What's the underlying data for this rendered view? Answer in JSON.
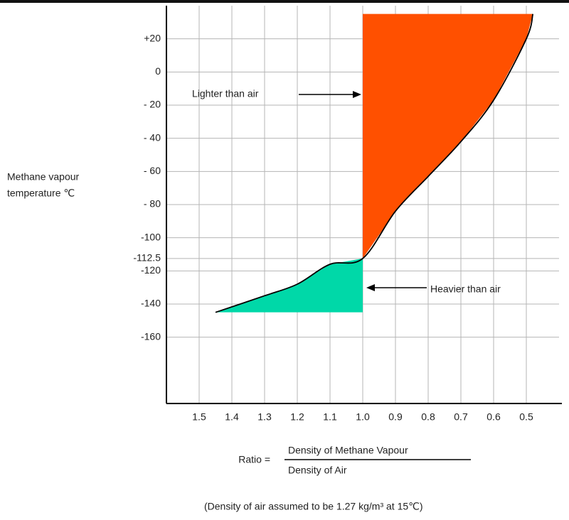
{
  "chart_data": {
    "type": "line",
    "ylabel": [
      "Methane vapour",
      "temperature ℃"
    ],
    "x": [
      1.45,
      1.3,
      1.2,
      1.1,
      1.0,
      0.9,
      0.8,
      0.7,
      0.6,
      0.5,
      0.48
    ],
    "series": [
      {
        "values": [
          -145,
          -135,
          -128,
          -116,
          -112.5,
          -84,
          -63,
          -42,
          -17,
          20,
          35
        ],
        "color": "#000000"
      }
    ],
    "area_colors": {
      "lighter": "#ff5000",
      "heavier": "#00d8a8"
    },
    "xlim": [
      1.6,
      0.4
    ],
    "xticks": [
      {
        "value": 1.5,
        "label": "1.5"
      },
      {
        "value": 1.4,
        "label": "1.4"
      },
      {
        "value": 1.3,
        "label": "1.3"
      },
      {
        "value": 1.2,
        "label": "1.2"
      },
      {
        "value": 1.1,
        "label": "1.1"
      },
      {
        "value": 1.0,
        "label": "1.0"
      },
      {
        "value": 0.9,
        "label": "0.9"
      },
      {
        "value": 0.8,
        "label": "0.8"
      },
      {
        "value": 0.7,
        "label": "0.7"
      },
      {
        "value": 0.6,
        "label": "0.6"
      },
      {
        "value": 0.5,
        "label": "0.5"
      }
    ],
    "ylim": [
      -200,
      40
    ],
    "yticks": [
      {
        "value": 20,
        "label": "+20"
      },
      0,
      {
        "value": -20,
        "label": "- 20"
      },
      {
        "value": -40,
        "label": "- 40"
      },
      {
        "value": -60,
        "label": "- 60"
      },
      {
        "value": -80,
        "label": "- 80"
      },
      -100,
      -112.5,
      -120,
      -140,
      -160
    ],
    "grid": true,
    "annotations": [
      "Lighter than air",
      "Heavier than air"
    ],
    "formula": {
      "lhs": "Ratio =",
      "numerator": "Density of Methane Vapour",
      "denominator": "Density of Air"
    },
    "note": "(Density of air assumed to be 1.27 kg/m³  at 15℃)"
  }
}
